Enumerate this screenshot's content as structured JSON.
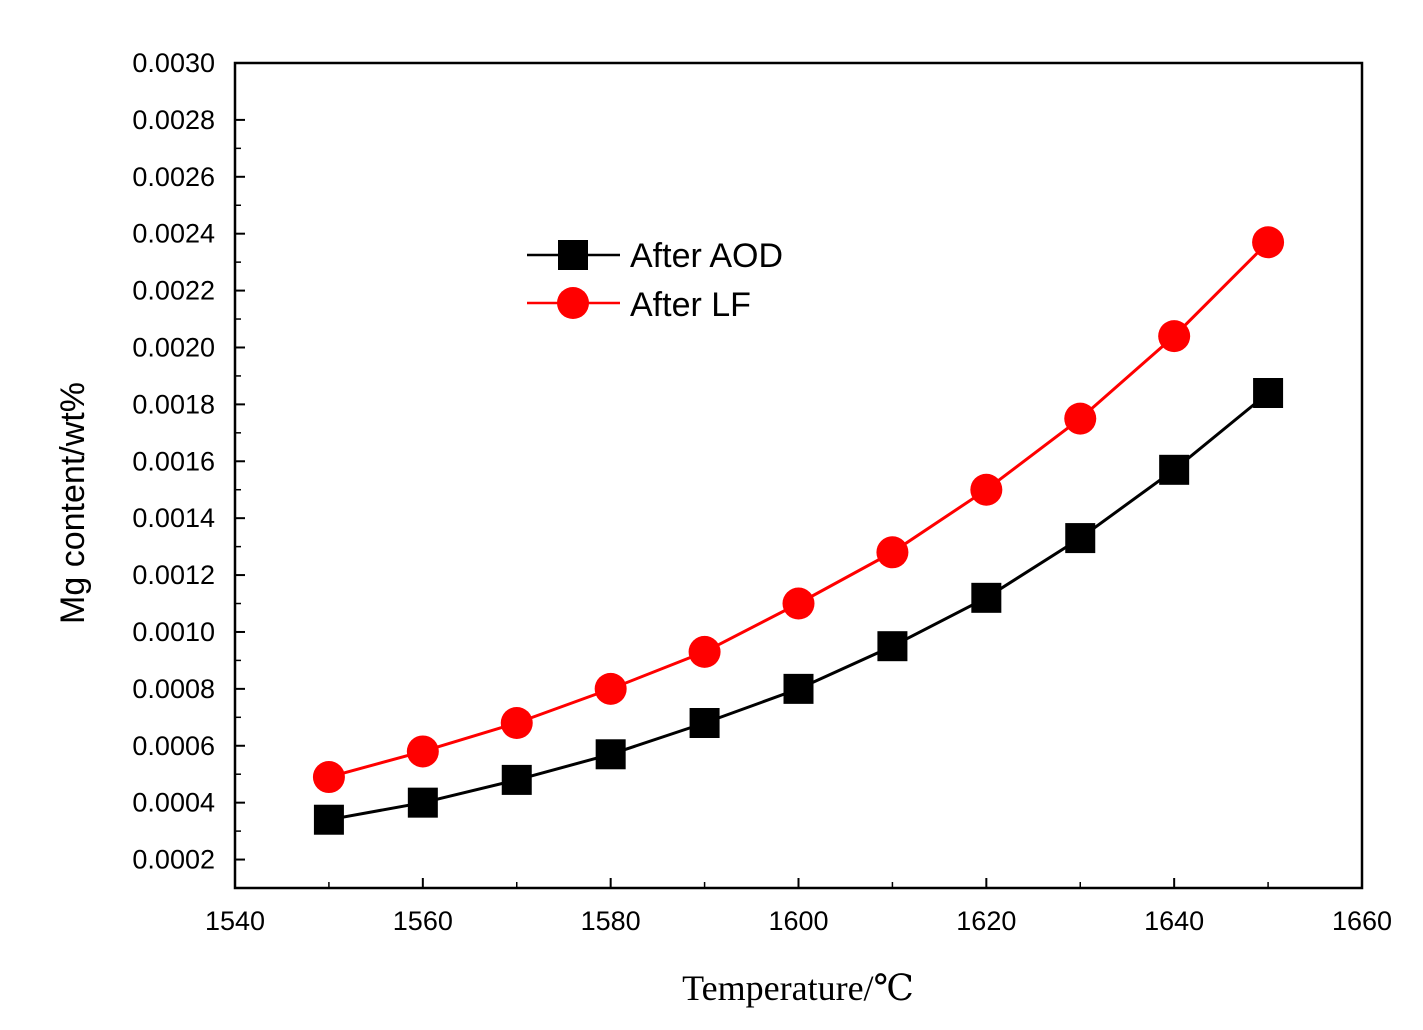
{
  "chart_data": {
    "type": "line",
    "title": "",
    "xlabel": "Temperature/℃",
    "ylabel": "Mg content/wt%",
    "xlim": [
      1540,
      1660
    ],
    "ylim": [
      0.0001,
      0.003
    ],
    "x_ticks": [
      "1540",
      "1560",
      "1580",
      "1600",
      "1620",
      "1640",
      "1660"
    ],
    "x_tick_values": [
      1540,
      1560,
      1580,
      1600,
      1620,
      1640,
      1660
    ],
    "y_ticks": [
      "0.0002",
      "0.0004",
      "0.0006",
      "0.0008",
      "0.0010",
      "0.0012",
      "0.0014",
      "0.0016",
      "0.0018",
      "0.0020",
      "0.0022",
      "0.0024",
      "0.0026",
      "0.0028",
      "0.0030"
    ],
    "y_tick_values": [
      0.0002,
      0.0004,
      0.0006,
      0.0008,
      0.001,
      0.0012,
      0.0014,
      0.0016,
      0.0018,
      0.002,
      0.0022,
      0.0024,
      0.0026,
      0.0028,
      0.003
    ],
    "grid": false,
    "legend_position": "upper-left-center",
    "x": [
      1550,
      1560,
      1570,
      1580,
      1590,
      1600,
      1610,
      1620,
      1630,
      1640,
      1650
    ],
    "series": [
      {
        "name": "After AOD",
        "color": "#000000",
        "marker": "square",
        "values": [
          0.00034,
          0.0004,
          0.00048,
          0.00057,
          0.00068,
          0.0008,
          0.00095,
          0.00112,
          0.00133,
          0.00157,
          0.00184
        ]
      },
      {
        "name": "After LF",
        "color": "#ff0000",
        "marker": "circle",
        "values": [
          0.00049,
          0.00058,
          0.00068,
          0.0008,
          0.00093,
          0.0011,
          0.00128,
          0.0015,
          0.00175,
          0.00204,
          0.00237
        ]
      }
    ]
  }
}
